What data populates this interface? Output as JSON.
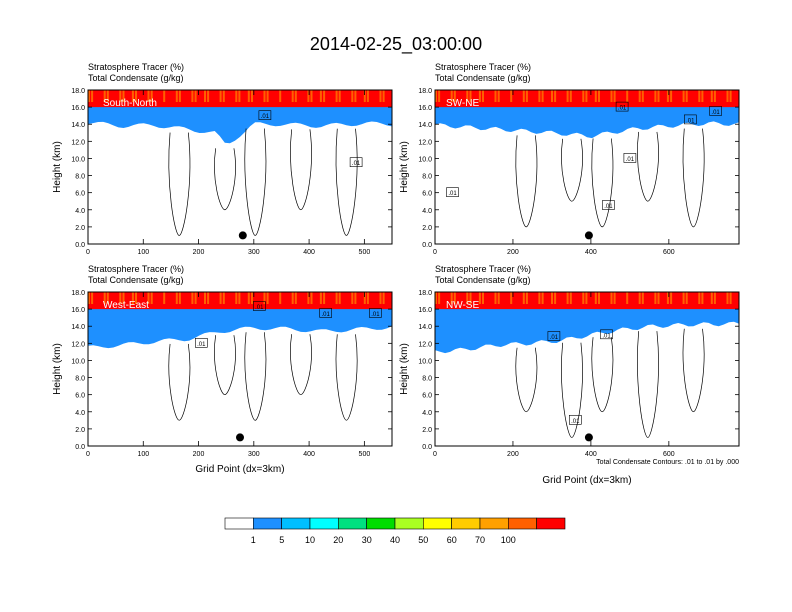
{
  "title": "2014-02-25_03:00:00",
  "footnote": "Total Condensate Contours: .01 to .01 by .000",
  "chart_data": [
    {
      "type": "heatmap",
      "panel_label": "South-North",
      "subtitle_line1": "Stratosphere Tracer   (%)",
      "subtitle_line2": "Total Condensate   (g/kg)",
      "ylabel": "Height (km)",
      "xlabel": "",
      "xlim": [
        0,
        550
      ],
      "ylim": [
        0,
        18
      ],
      "x_ticks": [
        "0",
        "100",
        "200",
        "300",
        "400",
        "500"
      ],
      "y_ticks": [
        "0.0",
        "2.0",
        "4.0",
        "6.0",
        "8.0",
        "10.0",
        "12.0",
        "14.0",
        "16.0",
        "18.0"
      ],
      "marker_x": 280,
      "marker_y": 1.0,
      "contour_labels": [
        {
          "x": 320,
          "y": 15.0,
          "text": ".01"
        },
        {
          "x": 485,
          "y": 9.5,
          "text": ".01"
        }
      ],
      "tracer_bottom": [
        [
          0,
          14.2
        ],
        [
          60,
          13.8
        ],
        [
          120,
          13.9
        ],
        [
          180,
          13.4
        ],
        [
          230,
          13.0
        ],
        [
          250,
          11.5
        ],
        [
          270,
          12.5
        ],
        [
          300,
          14.0
        ],
        [
          350,
          14.0
        ],
        [
          420,
          13.8
        ],
        [
          500,
          14.1
        ],
        [
          550,
          14.0
        ]
      ]
    },
    {
      "type": "heatmap",
      "panel_label": "SW-NE",
      "subtitle_line1": "Stratosphere Tracer   (%)",
      "subtitle_line2": "Total Condensate   (g/kg)",
      "ylabel": "Height (km)",
      "xlabel": "",
      "xlim": [
        0,
        780
      ],
      "ylim": [
        0,
        18
      ],
      "x_ticks": [
        "0",
        "200",
        "400",
        "600"
      ],
      "y_ticks": [
        "0.0",
        "2.0",
        "4.0",
        "6.0",
        "8.0",
        "10.0",
        "12.0",
        "14.0",
        "16.0",
        "18.0"
      ],
      "marker_x": 395,
      "marker_y": 1.0,
      "contour_labels": [
        {
          "x": 480,
          "y": 16.0,
          "text": ".01"
        },
        {
          "x": 720,
          "y": 15.5,
          "text": ".01"
        },
        {
          "x": 655,
          "y": 14.5,
          "text": ".01"
        },
        {
          "x": 500,
          "y": 10.0,
          "text": ".01"
        },
        {
          "x": 45,
          "y": 6.0,
          "text": ".01"
        },
        {
          "x": 445,
          "y": 4.5,
          "text": ".01"
        }
      ],
      "tracer_bottom": [
        [
          0,
          13.9
        ],
        [
          100,
          13.6
        ],
        [
          200,
          13.3
        ],
        [
          300,
          13.0
        ],
        [
          400,
          12.6
        ],
        [
          450,
          13.0
        ],
        [
          520,
          13.5
        ],
        [
          600,
          13.8
        ],
        [
          700,
          14.1
        ],
        [
          780,
          14.0
        ]
      ]
    },
    {
      "type": "heatmap",
      "panel_label": "West-East",
      "subtitle_line1": "Stratosphere Tracer   (%)",
      "subtitle_line2": "Total Condensate   (g/kg)",
      "ylabel": "Height (km)",
      "xlabel": "Grid Point (dx=3km)",
      "xlim": [
        0,
        550
      ],
      "ylim": [
        0,
        18
      ],
      "x_ticks": [
        "0",
        "100",
        "200",
        "300",
        "400",
        "500"
      ],
      "y_ticks": [
        "0.0",
        "2.0",
        "4.0",
        "6.0",
        "8.0",
        "10.0",
        "12.0",
        "14.0",
        "16.0",
        "18.0"
      ],
      "marker_x": 275,
      "marker_y": 1.0,
      "contour_labels": [
        {
          "x": 310,
          "y": 16.3,
          "text": ".01"
        },
        {
          "x": 430,
          "y": 15.5,
          "text": ".01"
        },
        {
          "x": 520,
          "y": 15.5,
          "text": ".01"
        },
        {
          "x": 205,
          "y": 12.0,
          "text": ".01"
        }
      ],
      "tracer_bottom": [
        [
          0,
          11.5
        ],
        [
          60,
          11.8
        ],
        [
          120,
          12.2
        ],
        [
          180,
          12.5
        ],
        [
          240,
          13.4
        ],
        [
          300,
          13.8
        ],
        [
          360,
          13.7
        ],
        [
          420,
          13.4
        ],
        [
          480,
          13.6
        ],
        [
          550,
          13.9
        ]
      ]
    },
    {
      "type": "heatmap",
      "panel_label": "NW-SE",
      "subtitle_line1": "Stratosphere Tracer   (%)",
      "subtitle_line2": "Total Condensate   (g/kg)",
      "ylabel": "Height (km)",
      "xlabel": "Grid Point (dx=3km)",
      "xlim": [
        0,
        780
      ],
      "ylim": [
        0,
        18
      ],
      "x_ticks": [
        "0",
        "200",
        "400",
        "600"
      ],
      "y_ticks": [
        "0.0",
        "2.0",
        "4.0",
        "6.0",
        "8.0",
        "10.0",
        "12.0",
        "14.0",
        "16.0",
        "18.0"
      ],
      "marker_x": 395,
      "marker_y": 1.0,
      "contour_labels": [
        {
          "x": 305,
          "y": 12.8,
          "text": ".01"
        },
        {
          "x": 440,
          "y": 13.0,
          "text": ".01"
        },
        {
          "x": 360,
          "y": 3.0,
          "text": ".01"
        }
      ],
      "tracer_bottom": [
        [
          0,
          11.0
        ],
        [
          80,
          11.3
        ],
        [
          160,
          11.8
        ],
        [
          240,
          12.0
        ],
        [
          320,
          12.3
        ],
        [
          400,
          13.0
        ],
        [
          480,
          13.6
        ],
        [
          560,
          14.0
        ],
        [
          660,
          14.2
        ],
        [
          780,
          14.3
        ]
      ]
    }
  ],
  "colorbar": {
    "labels": [
      "1",
      "5",
      "10",
      "20",
      "30",
      "40",
      "50",
      "60",
      "70",
      "100"
    ],
    "colors": [
      "#ffffff",
      "#1e90ff",
      "#00bfff",
      "#00ffff",
      "#00e080",
      "#00dd00",
      "#aaff22",
      "#ffff00",
      "#ffcc00",
      "#ffa000",
      "#ff6000",
      "#ff0000"
    ]
  }
}
